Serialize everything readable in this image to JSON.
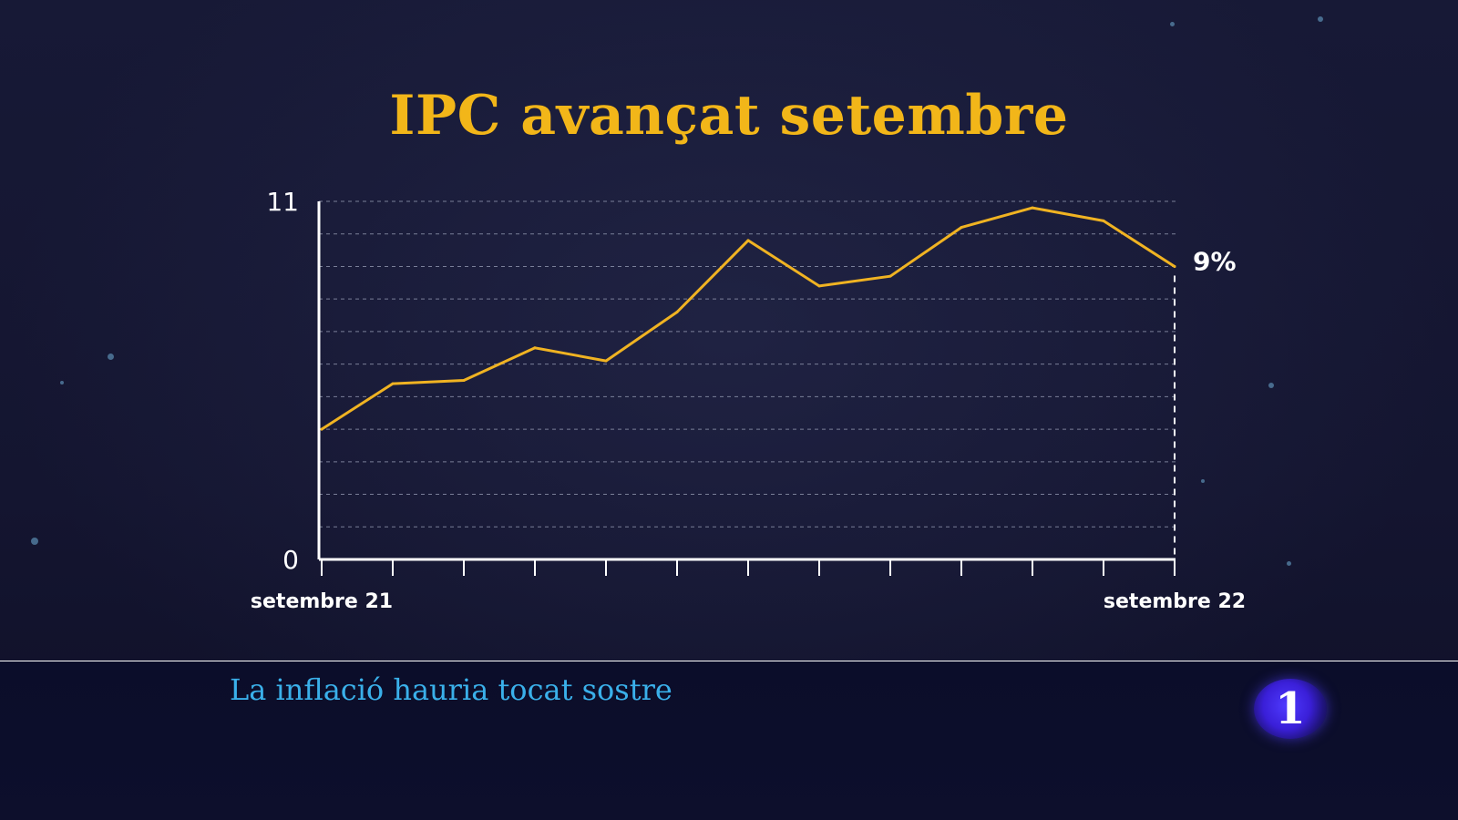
{
  "subtitle": "La inflació hauria tocat sostre",
  "channel_logo": "1",
  "colors": {
    "title": "#f2b619",
    "line": "#f0b322",
    "subtitle": "#3ab0ea",
    "background": "#151631"
  },
  "chart_data": {
    "type": "line",
    "title": "IPC avançat setembre",
    "xlabel": "",
    "ylabel": "",
    "ylim": [
      0,
      11
    ],
    "y_tick_labels": [
      "0",
      "11"
    ],
    "x_labels": {
      "first": "setembre 21",
      "last": "setembre 22"
    },
    "x": [
      "setembre 21",
      "",
      "",
      "",
      "",
      "",
      "",
      "",
      "",
      "",
      "",
      "",
      "setembre 22"
    ],
    "values": [
      4.0,
      5.4,
      5.5,
      6.5,
      6.1,
      7.6,
      9.8,
      8.4,
      8.7,
      10.2,
      10.8,
      10.4,
      9.0
    ],
    "grid": true,
    "end_label": "9%"
  }
}
